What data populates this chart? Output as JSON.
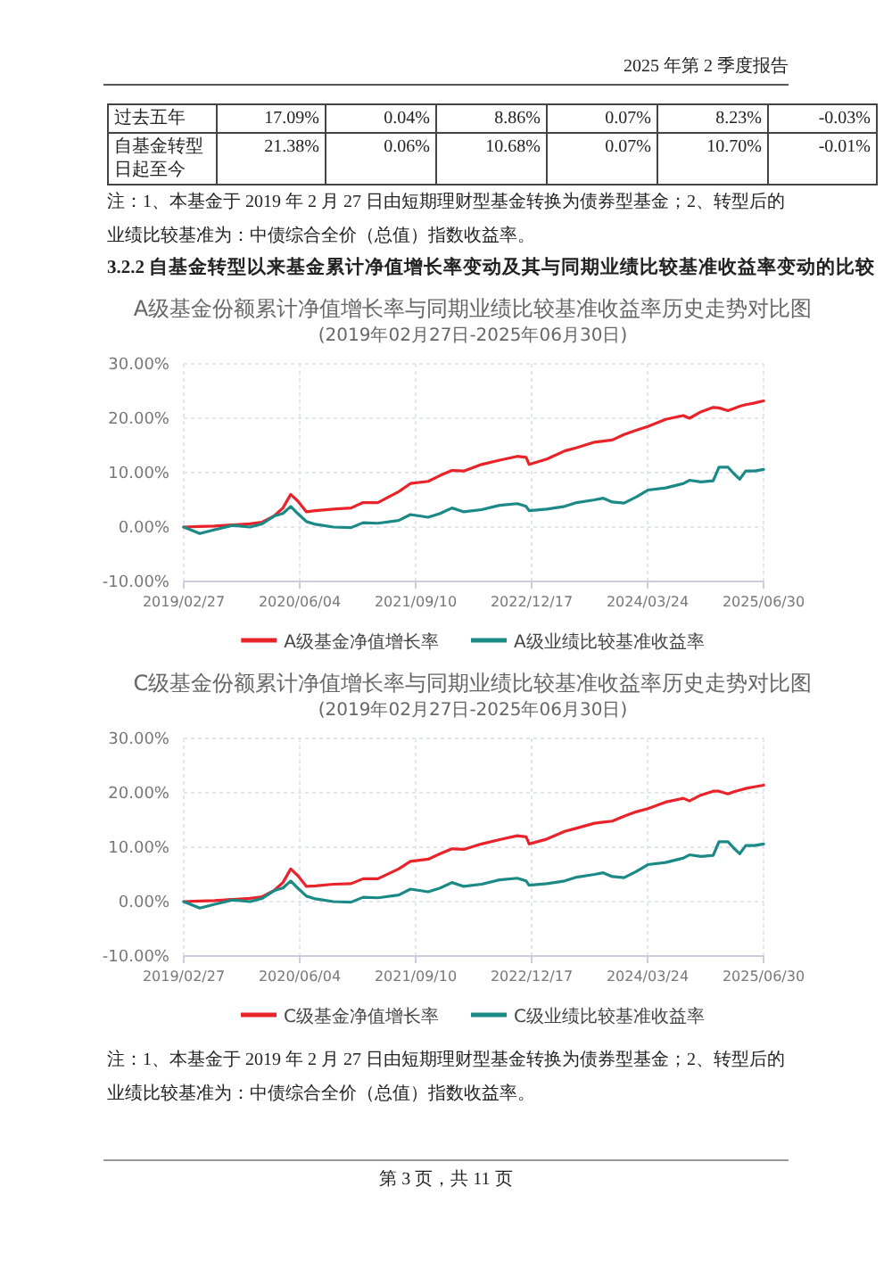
{
  "chart_data": [
    {
      "type": "other",
      "annotations": [
        "2025 年第 2 季度报告",
        "过去五年",
        "17.09%",
        "0.04%",
        "8.86%",
        "0.07%",
        "8.23%",
        "-0.03%",
        "自基金转型日起至今",
        "21.38%",
        "0.06%",
        "10.68%",
        "0.07%",
        "10.70%",
        "-0.01%",
        "注：1、本基金于 2019 年 2 月 27 日由短期理财型基金转换为债券型基金；2、转型后的业绩比较基准为：中债综合全价（总值）指数收益率。",
        "3.2.2 自基金转型以来基金累计净值增长率变动及其与同期业绩比较基准收益率变动的比较"
      ]
    },
    {
      "type": "line",
      "title": "A级基金份额累计净值增长率与同期业绩比较基准收益率历史走势对比图",
      "subtitle": "(2019年02月27日-2025年06月30日)",
      "x": [
        "2019-02-27",
        "2019-05-02",
        "2019-06-30",
        "2019-09-09",
        "2019-11-19",
        "2020-01-06",
        "2020-02-22",
        "2020-03-29",
        "2020-04-29",
        "2020-05-27",
        "2020-07-01",
        "2020-08-06",
        "2020-10-16",
        "2020-12-26",
        "2021-02-12",
        "2021-04-12",
        "2021-07-04",
        "2021-08-20",
        "2021-10-30",
        "2021-12-17",
        "2022-02-02",
        "2022-03-21",
        "2022-05-31",
        "2022-08-11",
        "2022-10-21",
        "2022-11-25",
        "2022-12-07",
        "2023-02-16",
        "2023-04-28",
        "2023-06-15",
        "2023-08-25",
        "2023-09-29",
        "2023-11-04",
        "2023-12-21",
        "2024-02-07",
        "2024-03-25",
        "2024-06-04",
        "2024-08-14",
        "2024-09-07",
        "2024-10-24",
        "2024-12-11",
        "2025-01-03",
        "2025-02-08",
        "2025-03-04",
        "2025-03-27",
        "2025-04-20",
        "2025-05-25",
        "2025-06-30"
      ],
      "series": [
        {
          "name": "A级基金净值增长率",
          "color": "#e8232a",
          "values": [
            0,
            0.1,
            0.2,
            0.4,
            0.6,
            0.9,
            2.0,
            3.5,
            6.0,
            4.8,
            2.8,
            3.0,
            3.3,
            3.5,
            4.5,
            4.5,
            6.5,
            8.0,
            8.4,
            9.5,
            10.4,
            10.3,
            11.5,
            12.3,
            13.0,
            12.8,
            11.5,
            12.5,
            14.0,
            14.6,
            15.6,
            15.8,
            16.0,
            17.0,
            17.8,
            18.5,
            19.8,
            20.5,
            20.0,
            21.2,
            22.0,
            21.9,
            21.4,
            21.8,
            22.2,
            22.5,
            22.8,
            23.2
          ]
        },
        {
          "name": "A级业绩比较基准收益率",
          "color": "#1b8a86",
          "values": [
            0,
            -1.2,
            -0.5,
            0.3,
            0.0,
            0.6,
            2.0,
            2.5,
            3.8,
            2.5,
            1.0,
            0.5,
            0.0,
            -0.1,
            0.8,
            0.7,
            1.2,
            2.3,
            1.8,
            2.5,
            3.5,
            2.8,
            3.2,
            4.0,
            4.3,
            3.8,
            3.0,
            3.3,
            3.8,
            4.5,
            5.0,
            5.3,
            4.6,
            4.4,
            5.5,
            6.8,
            7.2,
            8.0,
            8.6,
            8.3,
            8.5,
            11.0,
            11.0,
            9.8,
            8.8,
            10.3,
            10.3,
            10.6
          ]
        }
      ],
      "xlim": [
        "2019-02-27",
        "2025-06-30"
      ],
      "xticks": [
        {
          "value": "2019-02-27",
          "label": "2019/02/27"
        },
        {
          "value": "2020-06-04",
          "label": "2020/06/04"
        },
        {
          "value": "2021-09-10",
          "label": "2021/09/10"
        },
        {
          "value": "2022-12-17",
          "label": "2022/12/17"
        },
        {
          "value": "2024-03-24",
          "label": "2024/03/24"
        },
        {
          "value": "2025-06-30",
          "label": "2025/06/30"
        }
      ],
      "ylim": [
        -10,
        30
      ],
      "yticks": [
        {
          "value": -10,
          "label": "-10.00%"
        },
        {
          "value": 0,
          "label": "0.00%"
        },
        {
          "value": 10,
          "label": "10.00%"
        },
        {
          "value": 20,
          "label": "20.00%"
        },
        {
          "value": 30,
          "label": "30.00%"
        }
      ],
      "grid": true,
      "legend": "bottom"
    },
    {
      "type": "line",
      "title": "C级基金份额累计净值增长率与同期业绩比较基准收益率历史走势对比图",
      "subtitle": "(2019年02月27日-2025年06月30日)",
      "x": [
        "2019-02-27",
        "2019-05-02",
        "2019-06-30",
        "2019-09-09",
        "2019-11-19",
        "2020-01-06",
        "2020-02-22",
        "2020-03-29",
        "2020-04-29",
        "2020-05-27",
        "2020-07-01",
        "2020-08-06",
        "2020-10-16",
        "2020-12-26",
        "2021-02-12",
        "2021-04-12",
        "2021-07-04",
        "2021-08-20",
        "2021-10-30",
        "2021-12-17",
        "2022-02-02",
        "2022-03-21",
        "2022-05-31",
        "2022-08-11",
        "2022-10-21",
        "2022-11-25",
        "2022-12-07",
        "2023-02-16",
        "2023-04-28",
        "2023-06-15",
        "2023-08-25",
        "2023-09-29",
        "2023-11-04",
        "2023-12-21",
        "2024-02-07",
        "2024-03-25",
        "2024-06-04",
        "2024-08-14",
        "2024-09-07",
        "2024-10-24",
        "2024-12-11",
        "2025-01-03",
        "2025-02-08",
        "2025-03-04",
        "2025-03-27",
        "2025-04-20",
        "2025-05-25",
        "2025-06-30"
      ],
      "series": [
        {
          "name": "C级基金净值增长率",
          "color": "#e8232a",
          "values": [
            0,
            0.1,
            0.2,
            0.4,
            0.6,
            0.9,
            2.0,
            3.5,
            6.0,
            4.8,
            2.8,
            2.9,
            3.2,
            3.3,
            4.2,
            4.2,
            6.0,
            7.4,
            7.8,
            8.8,
            9.7,
            9.6,
            10.6,
            11.4,
            12.1,
            11.9,
            10.6,
            11.5,
            12.9,
            13.5,
            14.4,
            14.6,
            14.8,
            15.7,
            16.5,
            17.1,
            18.3,
            19.0,
            18.5,
            19.6,
            20.3,
            20.3,
            19.8,
            20.2,
            20.5,
            20.8,
            21.1,
            21.4
          ]
        },
        {
          "name": "C级业绩比较基准收益率",
          "color": "#1b8a86",
          "values": [
            0,
            -1.2,
            -0.5,
            0.3,
            0.0,
            0.6,
            2.0,
            2.5,
            3.8,
            2.5,
            1.0,
            0.5,
            0.0,
            -0.1,
            0.8,
            0.7,
            1.2,
            2.3,
            1.8,
            2.5,
            3.5,
            2.8,
            3.2,
            4.0,
            4.3,
            3.8,
            3.0,
            3.3,
            3.8,
            4.5,
            5.0,
            5.3,
            4.6,
            4.4,
            5.5,
            6.8,
            7.2,
            8.0,
            8.6,
            8.3,
            8.5,
            11.0,
            11.0,
            9.8,
            8.8,
            10.3,
            10.3,
            10.6
          ]
        }
      ],
      "xlim": [
        "2019-02-27",
        "2025-06-30"
      ],
      "xticks": [
        {
          "value": "2019-02-27",
          "label": "2019/02/27"
        },
        {
          "value": "2020-06-04",
          "label": "2020/06/04"
        },
        {
          "value": "2021-09-10",
          "label": "2021/09/10"
        },
        {
          "value": "2022-12-17",
          "label": "2022/12/17"
        },
        {
          "value": "2024-03-24",
          "label": "2024/03/24"
        },
        {
          "value": "2025-06-30",
          "label": "2025/06/30"
        }
      ],
      "ylim": [
        -10,
        30
      ],
      "yticks": [
        {
          "value": -10,
          "label": "-10.00%"
        },
        {
          "value": 0,
          "label": "0.00%"
        },
        {
          "value": 10,
          "label": "10.00%"
        },
        {
          "value": 20,
          "label": "20.00%"
        },
        {
          "value": 30,
          "label": "30.00%"
        }
      ],
      "grid": true,
      "legend": "bottom",
      "annotations": [
        "注：1、本基金于 2019 年 2 月 27 日由短期理财型基金转换为债券型基金；2、转型后的业绩比较基准为：中债综合全价（总值）指数收益率。",
        "第 3 页，共 11 页"
      ]
    }
  ]
}
